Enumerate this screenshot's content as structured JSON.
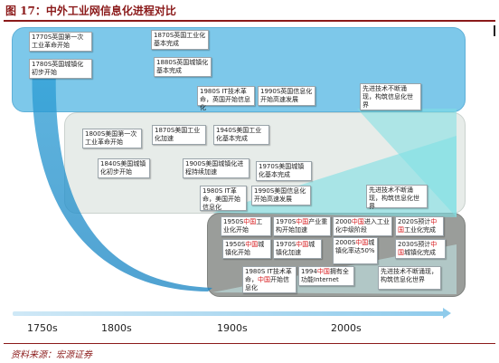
{
  "title": "图 17：中外工业网信息化进程对比",
  "source": "资料来源：宏源证券",
  "timeline": [
    "1750s",
    "1800s",
    "1900s",
    "2000s"
  ],
  "us_boxes": [
    {
      "id": "us-1770",
      "text": "1770S英国第一次工业革命开始"
    },
    {
      "id": "us-1780",
      "text": "1780S英国城镇化初步开始"
    },
    {
      "id": "us-1870",
      "text": "1870S英国工业化基本完成"
    },
    {
      "id": "us-1880",
      "text": "1880S英国城镇化基本完成"
    },
    {
      "id": "us-1980it",
      "text": "1980S IT技术革命，英国开始信息化"
    },
    {
      "id": "us-1990",
      "text": "1990S英国信息化开始高速发展"
    },
    {
      "id": "us-future",
      "text": "先进技术不断涌现，构筑信息化世界"
    }
  ],
  "world_boxes": [
    {
      "id": "w-1800",
      "text": "1800S美国第一次工业革命开始"
    },
    {
      "id": "w-1840",
      "text": "1840S美国城镇化初步开始"
    },
    {
      "id": "w-1870",
      "text": "1870S美国工业化加速"
    },
    {
      "id": "w-1900",
      "text": "1900S美国城镇化进程持续加速"
    },
    {
      "id": "w-1940",
      "text": "1940S美国工业化基本完成"
    },
    {
      "id": "w-1970",
      "text": "1970S美国城镇化基本完成"
    },
    {
      "id": "w-1980it",
      "text": "1980S IT革命，美国开始信息化"
    },
    {
      "id": "w-1990",
      "text": "1990S美国信息化开始高速发展"
    },
    {
      "id": "w-future",
      "text": "先进技术不断涌现，构筑信息化世界"
    }
  ],
  "cn_boxes": [
    {
      "id": "cn-1950",
      "pre": "1950S",
      "hl": "中国",
      "post": "工业化开始"
    },
    {
      "id": "cn-1970a",
      "pre": "1970S",
      "hl": "中国",
      "post": "产业重构开始加速"
    },
    {
      "id": "cn-2000a",
      "pre": "2000",
      "hl": "中国",
      "post": "进入工业化中级阶段"
    },
    {
      "id": "cn-2020",
      "pre": "2020S预计",
      "hl": "中国",
      "post": "工业化完成"
    },
    {
      "id": "cn-1950u",
      "pre": "1950S",
      "hl": "中国",
      "post": "城镇化开始"
    },
    {
      "id": "cn-1970u",
      "pre": "1970S",
      "hl": "中国",
      "post": "城镇化加速"
    },
    {
      "id": "cn-2000u",
      "pre": "2000S",
      "hl": "中国",
      "post": "城镇化率达50%"
    },
    {
      "id": "cn-2030",
      "pre": "2030S预计",
      "hl": "中国",
      "post": "城镇化完成"
    },
    {
      "id": "cn-1980it",
      "pre": "1980S IT技术革命，",
      "hl": "中国",
      "post": "开始信息化"
    },
    {
      "id": "cn-1994",
      "pre": "1994",
      "hl": "中国",
      "post": "拥有全功能Internet"
    },
    {
      "id": "cn-future",
      "pre": "先进技术不断涌现，构筑信息化世界",
      "hl": "",
      "post": ""
    }
  ],
  "colors": {
    "us_band": "#7dc8ea",
    "world_band": "#e6ebe8",
    "cn_band": "#9a9d9a",
    "highlight": "#d7191c",
    "title": "#8b1a1a"
  }
}
